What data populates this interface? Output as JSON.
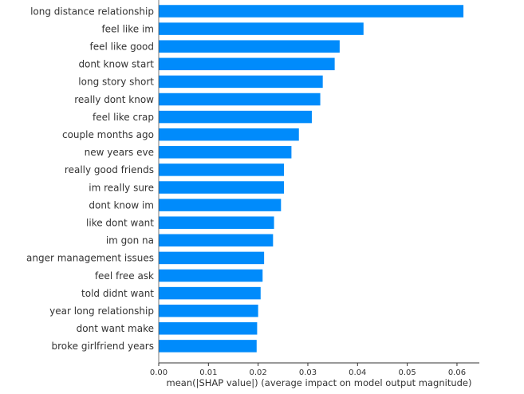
{
  "colors": {
    "bar": "#008bfb",
    "axis": "#333333",
    "text": "#333333"
  },
  "chart_data": {
    "type": "bar",
    "orientation": "horizontal",
    "title": "",
    "xlabel": "mean(|SHAP value|) (average impact on model output magnitude)",
    "ylabel": "",
    "xlim": [
      0,
      0.0645
    ],
    "xticks": [
      0.0,
      0.01,
      0.02,
      0.03,
      0.04,
      0.05,
      0.06
    ],
    "xtick_labels": [
      "0.00",
      "0.01",
      "0.02",
      "0.03",
      "0.04",
      "0.05",
      "0.06"
    ],
    "grid": false,
    "categories": [
      "long distance relationship",
      "feel like im",
      "feel like good",
      "dont know start",
      "long story short",
      "really dont know",
      "feel like crap",
      "couple months ago",
      "new years eve",
      "really good friends",
      "im really sure",
      "dont know im",
      "like dont want",
      "im gon na",
      "anger management issues",
      "feel free ask",
      "told didnt want",
      "year long relationship",
      "dont want make",
      "broke girlfriend years"
    ],
    "values": [
      0.0613,
      0.0412,
      0.0364,
      0.0354,
      0.033,
      0.0325,
      0.0308,
      0.0282,
      0.0267,
      0.0252,
      0.0252,
      0.0246,
      0.0232,
      0.023,
      0.0212,
      0.0209,
      0.0205,
      0.02,
      0.0198,
      0.0197
    ]
  }
}
